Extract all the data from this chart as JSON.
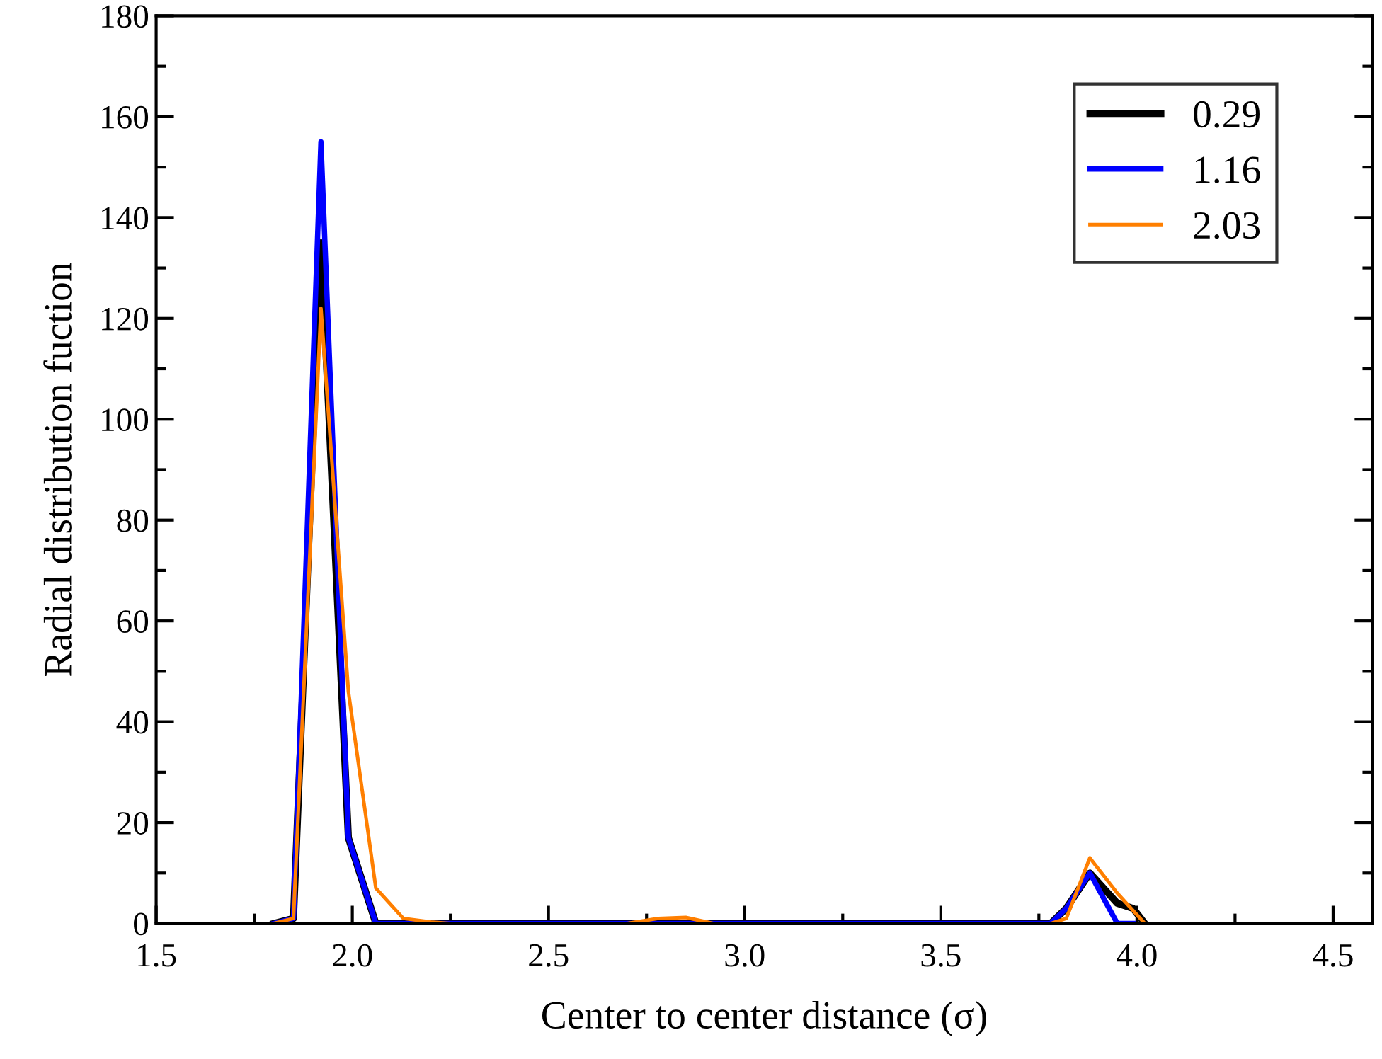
{
  "chart_data": {
    "type": "line",
    "xlabel": "Center to center distance (σ)",
    "ylabel": "Radial distribution fuction",
    "xlim": [
      1.5,
      4.6
    ],
    "xticks": [
      1.5,
      {
        "value": 2,
        "label": "2.0"
      },
      2.5,
      {
        "value": 3,
        "label": "3.0"
      },
      3.5,
      {
        "value": 4,
        "label": "4.0"
      },
      4.5
    ],
    "ylim": [
      0,
      180
    ],
    "yticks": [
      0,
      20,
      40,
      60,
      80,
      100,
      120,
      140,
      160,
      180
    ],
    "grid": false,
    "legend": "top right",
    "marker": "none",
    "line_style": "solid",
    "series": [
      {
        "name": "0.29",
        "color": "#000000",
        "x": [
          1.8,
          1.85,
          1.92,
          1.99,
          2.06,
          3.78,
          3.82,
          3.88,
          3.95,
          3.99,
          4.02
        ],
        "values": [
          0,
          1,
          135,
          17,
          0,
          0,
          3,
          10,
          4,
          3,
          0
        ]
      },
      {
        "name": "1.16",
        "color": "#0000ff",
        "x": [
          1.8,
          1.85,
          1.92,
          1.99,
          2.06,
          3.78,
          3.82,
          3.88,
          3.95,
          3.99
        ],
        "values": [
          0,
          1,
          155,
          17,
          0,
          0,
          3,
          10,
          0,
          0
        ]
      },
      {
        "name": "2.03",
        "color": "#ff7f00",
        "x": [
          1.8,
          1.85,
          1.92,
          1.99,
          2.06,
          2.13,
          2.2,
          2.25,
          2.7,
          2.78,
          2.85,
          2.92,
          3.78,
          3.82,
          3.88,
          3.95,
          4.02,
          4.06
        ],
        "values": [
          0,
          1,
          122,
          46,
          7,
          1,
          0.3,
          0,
          0,
          1,
          1.2,
          0,
          0,
          1,
          13,
          6,
          0,
          0
        ]
      }
    ]
  }
}
